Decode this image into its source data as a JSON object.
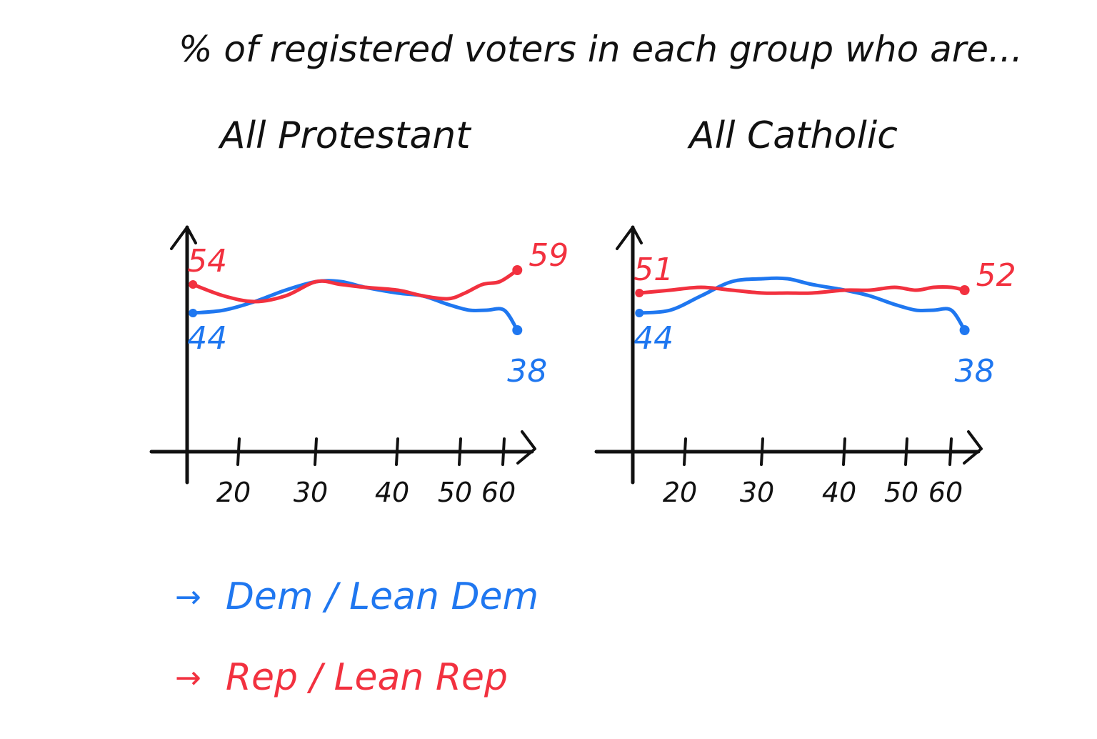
{
  "title": "% of registered voters in each group who are...",
  "colors": {
    "dem": "#1f77f0",
    "rep": "#f2313f",
    "axis": "#111111"
  },
  "legend": [
    {
      "key": "dem",
      "arrow": "→",
      "label": "Dem / Lean Dem"
    },
    {
      "key": "rep",
      "arrow": "→",
      "label": "Rep / Lean Rep"
    }
  ],
  "chart_data": [
    {
      "type": "line",
      "title": "All Protestant",
      "x_ticks": [
        "20",
        "30",
        "40",
        "50",
        "60"
      ],
      "xlim": [
        10,
        65
      ],
      "ylim": [
        0,
        70
      ],
      "grid": false,
      "series": [
        {
          "key": "dem",
          "name": "Dem / Lean Dem",
          "x": [
            14,
            18,
            22,
            26,
            30,
            33,
            36,
            40,
            44,
            48,
            52,
            56,
            60,
            63
          ],
          "y": [
            44,
            45,
            48,
            52,
            55,
            55,
            53,
            51,
            50,
            47,
            45,
            45,
            45,
            38
          ],
          "start_label": "44",
          "end_label": "38"
        },
        {
          "key": "rep",
          "name": "Rep / Lean Rep",
          "x": [
            14,
            18,
            22,
            26,
            30,
            33,
            36,
            40,
            44,
            48,
            51,
            55,
            59,
            63
          ],
          "y": [
            54,
            50,
            48,
            50,
            55,
            54,
            53,
            52,
            50,
            49,
            51,
            54,
            55,
            59
          ],
          "start_label": "54",
          "end_label": "59"
        }
      ]
    },
    {
      "type": "line",
      "title": "All Catholic",
      "x_ticks": [
        "20",
        "30",
        "40",
        "50",
        "60"
      ],
      "xlim": [
        10,
        65
      ],
      "ylim": [
        0,
        70
      ],
      "grid": false,
      "series": [
        {
          "key": "dem",
          "name": "Dem / Lean Dem",
          "x": [
            14,
            18,
            22,
            26,
            30,
            33,
            36,
            40,
            44,
            48,
            52,
            56,
            60,
            63
          ],
          "y": [
            44,
            45,
            50,
            55,
            56,
            56,
            54,
            52,
            50,
            47,
            45,
            45,
            45,
            38
          ],
          "start_label": "44",
          "end_label": "38"
        },
        {
          "key": "rep",
          "name": "Rep / Lean Rep",
          "x": [
            14,
            18,
            22,
            26,
            30,
            33,
            36,
            40,
            44,
            48,
            52,
            56,
            60,
            63
          ],
          "y": [
            51,
            52,
            53,
            52,
            51,
            51,
            51,
            52,
            52,
            53,
            52,
            53,
            53,
            52
          ],
          "start_label": "51",
          "end_label": "52"
        }
      ]
    }
  ]
}
